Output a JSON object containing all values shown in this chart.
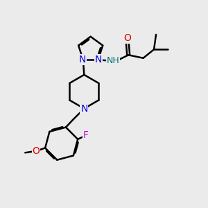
{
  "background_color": "#ebebeb",
  "bond_color": "#000000",
  "bond_width": 1.8,
  "atom_colors": {
    "N": "#0000ee",
    "O": "#dd0000",
    "F": "#cc00cc",
    "C": "#000000",
    "H": "#007070"
  },
  "font_size": 9,
  "fig_size": [
    3.0,
    3.0
  ],
  "dpi": 100
}
